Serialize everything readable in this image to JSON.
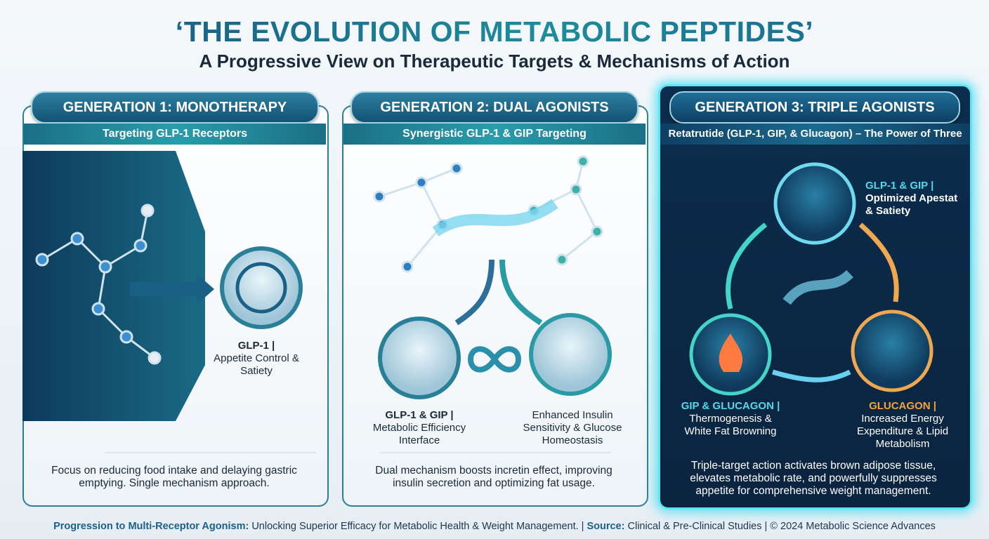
{
  "header": {
    "title": "‘THE EVOLUTION OF METABOLIC PEPTIDES’",
    "subtitle": "A Progressive View on Therapeutic Targets & Mechanisms of Action"
  },
  "panels": [
    {
      "title": "GENERATION 1: MONOTHERAPY",
      "subtitle": "Targeting GLP-1 Receptors",
      "effects": [
        {
          "target": "GLP-1 |",
          "label": "Appetite Control & Satiety"
        }
      ],
      "description": "Focus on reducing food intake and delaying gastric emptying. Single mechanism approach."
    },
    {
      "title": "GENERATION 2: DUAL AGONISTS",
      "subtitle": "Synergistic GLP-1 & GIP Targeting",
      "effects": [
        {
          "target": "GLP-1 & GIP |",
          "label": "Metabolic Efficiency Interface"
        },
        {
          "label": "Enhanced Insulin Sensitivity & Glucose Homeostasis"
        }
      ],
      "description": "Dual mechanism boosts incretin effect, improving insulin secretion and optimizing fat usage."
    },
    {
      "title": "GENERATION 3: TRIPLE AGONISTS",
      "subtitle": "Retatrutide (GLP-1, GIP, & Glucagon) – The Power of Three",
      "effects": [
        {
          "target": "GLP-1 & GIP |",
          "label": "Optimized Apestat & Satiety"
        },
        {
          "target": "GIP & GLUCAGON |",
          "label": "Thermogenesis & White Fat Browning"
        },
        {
          "target": "GLUCAGON |",
          "label": "Increased Energy Expenditure & Lipid Metabolism"
        }
      ],
      "description": "Triple-target action activates brown adipose tissue, elevates metabolic rate, and powerfully suppresses appetite for comprehensive weight management."
    }
  ],
  "footer": {
    "lead": "Progression to Multi-Receptor Agonism:",
    "text": "Unlocking Superior Efficacy for Metabolic Health & Weight Management. |",
    "source_label": "Source:",
    "source": "Clinical & Pre-Clinical Studies | © 2024 Metabolic Science Advances"
  }
}
